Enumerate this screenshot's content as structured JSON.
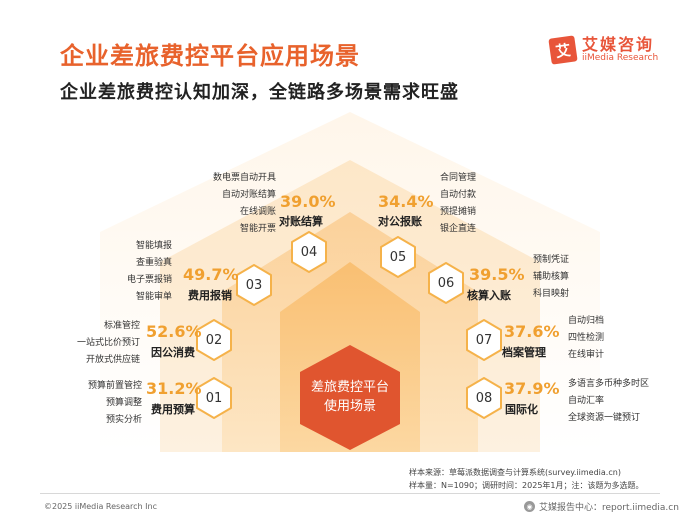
{
  "header": {
    "title": "企业差旅费控平台应用场景",
    "subtitle": "企业差旅费控认知加深，全链路多场景需求旺盛"
  },
  "logo": {
    "mark": "艾",
    "cn": "艾媒咨询",
    "en": "iiMedia Research"
  },
  "center": {
    "line1": "差旅费控平台",
    "line2": "使用场景"
  },
  "scenarios": [
    {
      "num": "01",
      "pct": "31.2%",
      "label": "费用预算",
      "items": [
        "预算前置管控",
        "预算调整",
        "预实分析"
      ]
    },
    {
      "num": "02",
      "pct": "52.6%",
      "label": "因公消费",
      "items": [
        "标准管控",
        "一站式比价预订",
        "开放式供应链"
      ]
    },
    {
      "num": "03",
      "pct": "49.7%",
      "label": "费用报销",
      "items": [
        "智能填报",
        "查重验真",
        "电子票报销",
        "智能审单"
      ]
    },
    {
      "num": "04",
      "pct": "39.0%",
      "label": "对账结算",
      "items": [
        "数电票自动开具",
        "自动对账结算",
        "在线调账",
        "智能开票"
      ]
    },
    {
      "num": "05",
      "pct": "34.4%",
      "label": "对公报账",
      "items": [
        "合同管理",
        "自动付款",
        "预提摊销",
        "银企直连"
      ]
    },
    {
      "num": "06",
      "pct": "39.5%",
      "label": "核算入账",
      "items": [
        "预制凭证",
        "辅助核算",
        "科目映射"
      ]
    },
    {
      "num": "07",
      "pct": "37.6%",
      "label": "档案管理",
      "items": [
        "自动归档",
        "四性检测",
        "在线审计"
      ]
    },
    {
      "num": "08",
      "pct": "37.9%",
      "label": "国际化",
      "items": [
        "多语言多币种多时区",
        "自动汇率",
        "全球资源一键预订"
      ]
    }
  ],
  "notes": {
    "line1": "样本来源：草莓派数据调查与计算系统(survey.iimedia.cn)",
    "line2": "样本量：N=1090；调研时间：2025年1月；注：该题为多选题。"
  },
  "footer": {
    "left": "©2025  iiMedia Research  Inc",
    "right": "艾媒报告中心：report.iimedia.cn"
  },
  "colors": {
    "accent": "#e8622c",
    "pct": "#f0a030",
    "center": "#e0552f",
    "hex_border": "#f5b24a"
  }
}
